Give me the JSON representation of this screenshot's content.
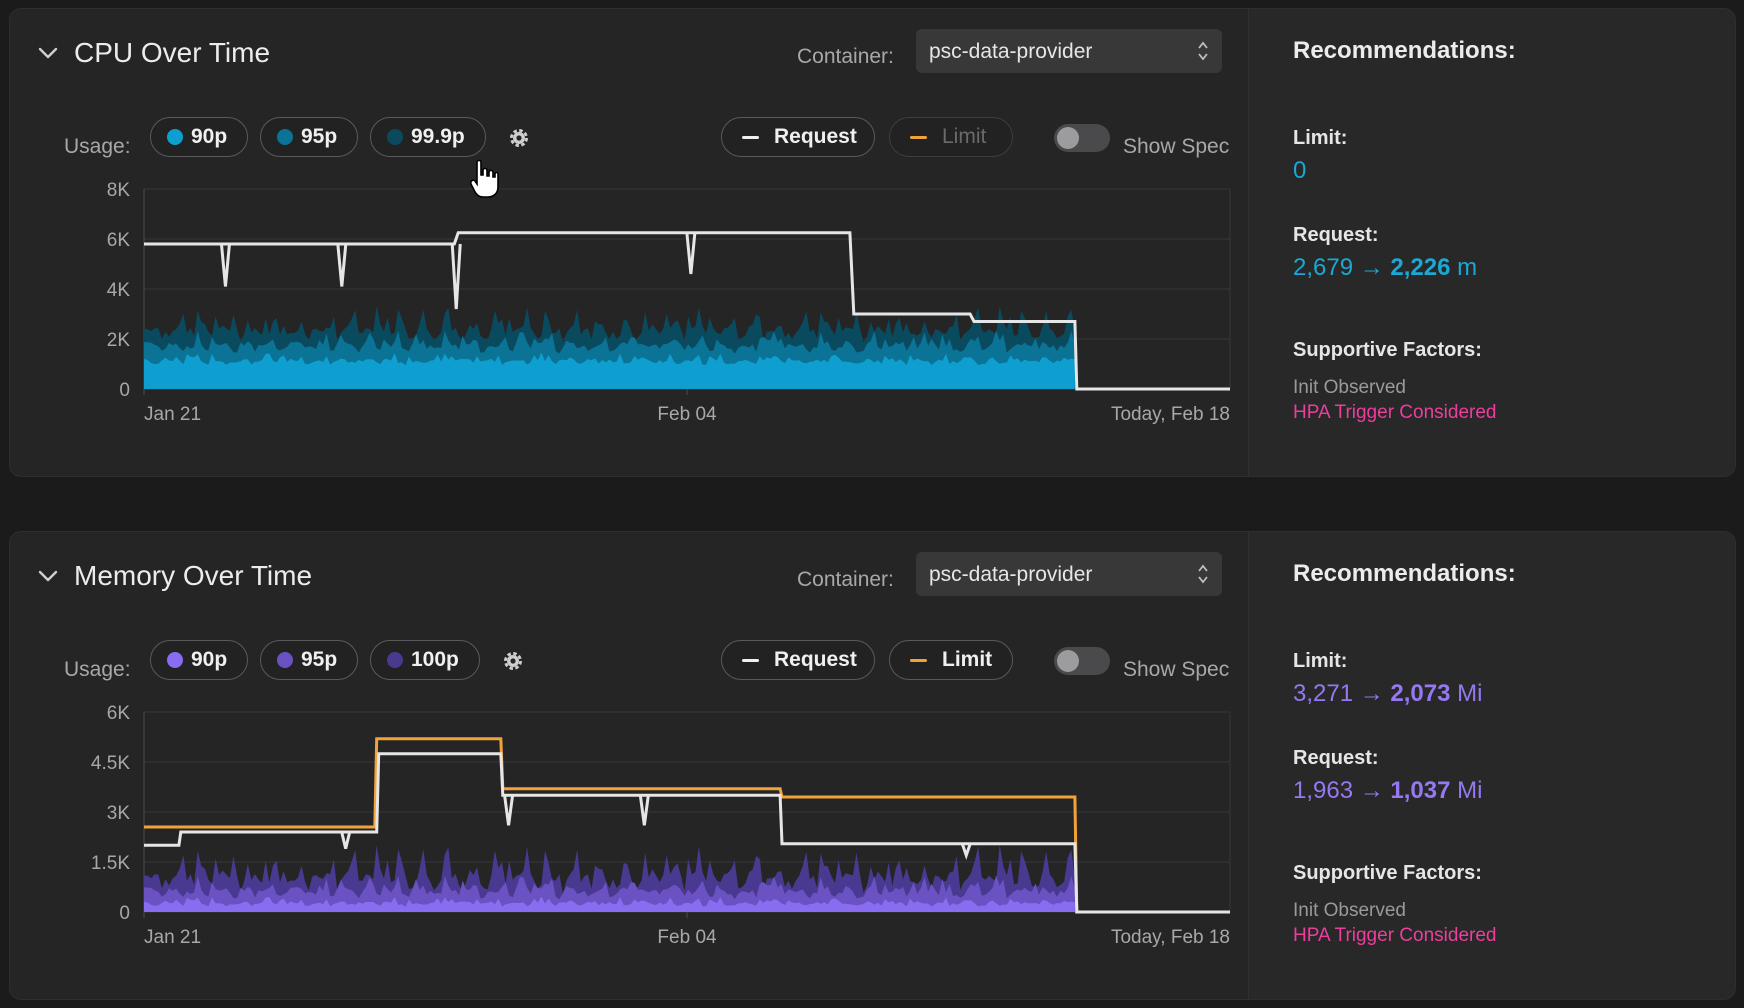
{
  "colors": {
    "cpu_accent": "#1ca7d4",
    "cpu_p90": "#0e9fd0",
    "cpu_p95": "#0b7395",
    "cpu_p999": "#0a4a5f",
    "mem_accent": "#9678f0",
    "mem_p90": "#8a6cf0",
    "mem_p95": "#6a52c2",
    "mem_p100": "#4a3990",
    "request_line": "#e6e6e6",
    "limit_line": "#f2a23a",
    "factor_highlight": "#ec3e9c"
  },
  "cpu": {
    "title": "CPU Over Time",
    "container_label": "Container:",
    "container_value": "psc-data-provider",
    "usage_label": "Usage:",
    "pills": [
      "90p",
      "95p",
      "99.9p"
    ],
    "request_label": "Request",
    "limit_label": "Limit",
    "show_spec_label": "Show Spec",
    "show_spec_on": false,
    "recommendations": {
      "title": "Recommendations:",
      "limit_label": "Limit:",
      "limit_value": "0",
      "request_label": "Request:",
      "request_from": "2,679",
      "request_arrow": "→",
      "request_to": "2,226",
      "request_unit": "m",
      "factors_label": "Supportive Factors:",
      "factor_1": "Init Observed",
      "factor_2": "HPA Trigger Considered"
    }
  },
  "memory": {
    "title": "Memory Over Time",
    "container_label": "Container:",
    "container_value": "psc-data-provider",
    "usage_label": "Usage:",
    "pills": [
      "90p",
      "95p",
      "100p"
    ],
    "request_label": "Request",
    "limit_label": "Limit",
    "show_spec_label": "Show Spec",
    "show_spec_on": false,
    "recommendations": {
      "title": "Recommendations:",
      "limit_label": "Limit:",
      "limit_from": "3,271",
      "limit_arrow": "→",
      "limit_to": "2,073",
      "limit_unit": "Mi",
      "request_label": "Request:",
      "request_from": "1,963",
      "request_arrow": "→",
      "request_to": "1,037",
      "request_unit": "Mi",
      "factors_label": "Supportive Factors:",
      "factor_1": "Init Observed",
      "factor_2": "HPA Trigger Considered"
    }
  },
  "chart_data": [
    {
      "type": "area",
      "x_range_days": [
        0,
        28
      ],
      "x_ticks": [
        {
          "day": 0,
          "label": "Jan 21"
        },
        {
          "day": 14,
          "label": "Feb 04"
        },
        {
          "day": 28,
          "label": "Today, Feb 18"
        }
      ],
      "ylim": [
        0,
        8000
      ],
      "y_ticks": [
        {
          "v": 0,
          "label": "0"
        },
        {
          "v": 2000,
          "label": "2K"
        },
        {
          "v": 4000,
          "label": "4K"
        },
        {
          "v": 6000,
          "label": "6K"
        },
        {
          "v": 8000,
          "label": "8K"
        }
      ],
      "usage_end_day": 24,
      "usage_series": [
        {
          "name": "99.9p",
          "base": 2300,
          "amp": 700
        },
        {
          "name": "95p",
          "base": 1700,
          "amp": 450
        },
        {
          "name": "90p",
          "base": 1100,
          "amp": 250
        }
      ],
      "request_steps": [
        [
          0,
          5800
        ],
        [
          8,
          5800
        ],
        [
          8.1,
          6250
        ],
        [
          18.2,
          6250
        ],
        [
          18.3,
          3000
        ],
        [
          21.3,
          3000
        ],
        [
          21.4,
          2700
        ],
        [
          24,
          2700
        ],
        [
          24.05,
          0
        ],
        [
          28,
          0
        ]
      ],
      "request_dips": [
        [
          2.1,
          4100
        ],
        [
          5.1,
          4100
        ],
        [
          8.05,
          3200
        ],
        [
          14.1,
          4600
        ]
      ],
      "limit_steps": [],
      "grid": true
    },
    {
      "type": "area",
      "x_range_days": [
        0,
        28
      ],
      "x_ticks": [
        {
          "day": 0,
          "label": "Jan 21"
        },
        {
          "day": 14,
          "label": "Feb 04"
        },
        {
          "day": 28,
          "label": "Today, Feb 18"
        }
      ],
      "ylim": [
        0,
        6000
      ],
      "y_ticks": [
        {
          "v": 0,
          "label": "0"
        },
        {
          "v": 1500,
          "label": "1.5K"
        },
        {
          "v": 3000,
          "label": "3K"
        },
        {
          "v": 4500,
          "label": "4.5K"
        },
        {
          "v": 6000,
          "label": "6K"
        }
      ],
      "usage_end_day": 24,
      "usage_series": [
        {
          "name": "100p",
          "base": 1000,
          "amp": 700
        },
        {
          "name": "95p",
          "base": 600,
          "amp": 350
        },
        {
          "name": "90p",
          "base": 250,
          "amp": 150
        }
      ],
      "request_steps": [
        [
          0,
          2000
        ],
        [
          0.9,
          2000
        ],
        [
          0.95,
          2400
        ],
        [
          6.0,
          2400
        ],
        [
          6.05,
          4750
        ],
        [
          9.2,
          4750
        ],
        [
          9.25,
          3500
        ],
        [
          16.4,
          3500
        ],
        [
          16.45,
          2050
        ],
        [
          24,
          2050
        ],
        [
          24.05,
          0
        ],
        [
          28,
          0
        ]
      ],
      "request_dips": [
        [
          5.2,
          1900
        ],
        [
          9.4,
          2600
        ],
        [
          12.9,
          2600
        ],
        [
          21.2,
          1700
        ]
      ],
      "limit_steps": [
        [
          0,
          2550
        ],
        [
          5.95,
          2550
        ],
        [
          6.0,
          5200
        ],
        [
          9.2,
          5200
        ],
        [
          9.25,
          3700
        ],
        [
          16.4,
          3700
        ],
        [
          16.45,
          3450
        ],
        [
          24,
          3450
        ],
        [
          24.05,
          0
        ],
        [
          28,
          0
        ]
      ],
      "grid": true
    }
  ]
}
